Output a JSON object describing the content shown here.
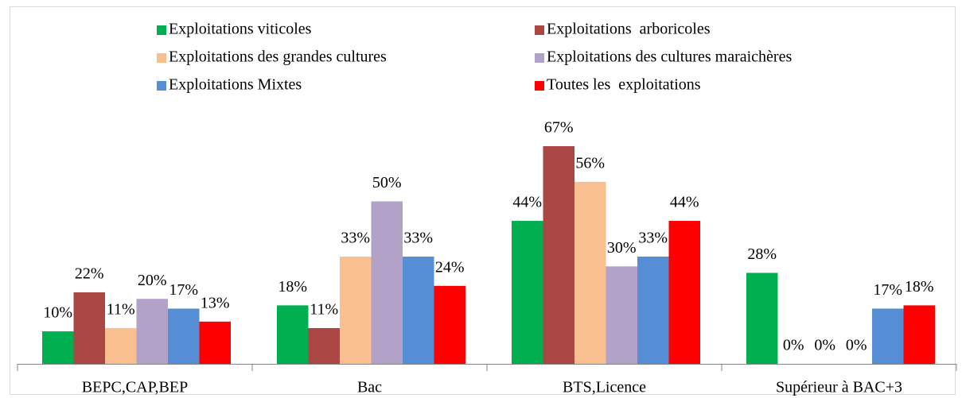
{
  "chart_data": {
    "type": "bar",
    "categories": [
      "BEPC,CAP,BEP",
      "Bac",
      "BTS,Licence",
      "Supérieur à BAC+3"
    ],
    "series": [
      {
        "name": "Exploitations viticoles",
        "color": "#00b050",
        "values": [
          10,
          18,
          44,
          28
        ],
        "value_labels": [
          "10%",
          "18%",
          "44%",
          "28%"
        ]
      },
      {
        "name": "Exploitations  arboricoles",
        "color": "#aa4643",
        "values": [
          22,
          11,
          67,
          0
        ],
        "value_labels": [
          "22%",
          "11%",
          "67%",
          "0%"
        ]
      },
      {
        "name": "Exploitations des grandes cultures",
        "color": "#f9bf8f",
        "values": [
          11,
          33,
          56,
          0
        ],
        "value_labels": [
          "11%",
          "33%",
          "56%",
          "0%"
        ]
      },
      {
        "name": "Exploitations des cultures maraichères",
        "color": "#b3a2c7",
        "values": [
          20,
          50,
          30,
          0
        ],
        "value_labels": [
          "20%",
          "50%",
          "30%",
          "0%"
        ]
      },
      {
        "name": "Exploitations Mixtes",
        "color": "#558ed5",
        "values": [
          17,
          33,
          33,
          17
        ],
        "value_labels": [
          "17%",
          "33%",
          "33%",
          "17%"
        ]
      },
      {
        "name": "Toutes les  exploitations",
        "color": "#ff0000",
        "values": [
          13,
          24,
          44,
          18
        ],
        "value_labels": [
          "13%",
          "24%",
          "44%",
          "18%"
        ]
      }
    ],
    "legend": "top"
  }
}
